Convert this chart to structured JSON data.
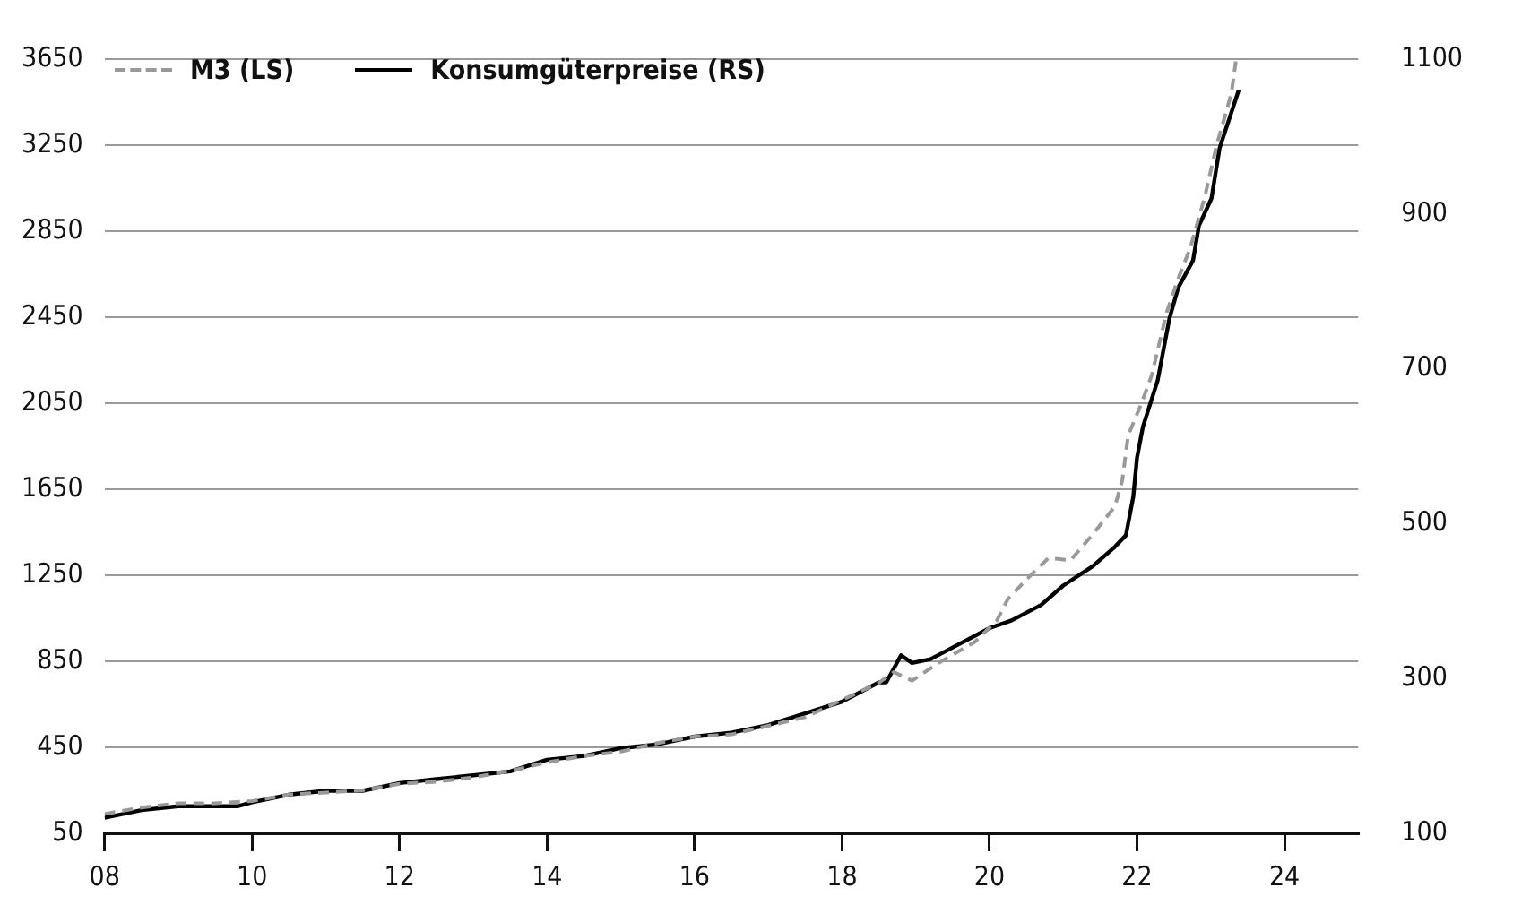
{
  "chart_data": {
    "type": "line",
    "legend": "top left",
    "grid": "y",
    "line_style": "solid",
    "marker": "none",
    "xlim": [
      2008,
      2025
    ],
    "xticks": [
      {
        "value": 2008,
        "label": "08"
      },
      {
        "value": 2010,
        "label": "10"
      },
      {
        "value": 2012,
        "label": "12"
      },
      {
        "value": 2014,
        "label": "14"
      },
      {
        "value": 2016,
        "label": "16"
      },
      {
        "value": 2018,
        "label": "18"
      },
      {
        "value": 2020,
        "label": "20"
      },
      {
        "value": 2022,
        "label": "22"
      },
      {
        "value": 2024,
        "label": "24"
      }
    ],
    "ylim": [
      50,
      3650
    ],
    "yticks": [
      50,
      450,
      850,
      1250,
      1650,
      2050,
      2450,
      2850,
      3250,
      3650
    ],
    "y2lim": [
      100,
      1100
    ],
    "y2ticks": [
      100,
      300,
      500,
      700,
      900,
      1100
    ],
    "series": [
      {
        "name": "M3 (LS)",
        "color": "#999999",
        "line_style": "dashed",
        "x": [
          2008,
          2008.5,
          2009,
          2009.5,
          2010,
          2010.5,
          2011,
          2011.5,
          2012,
          2012.5,
          2013,
          2013.5,
          2014,
          2014.5,
          2015,
          2015.5,
          2016,
          2016.5,
          2017,
          2017.5,
          2018,
          2018.5,
          2018.7,
          2018.95,
          2019.3,
          2019.8,
          2020.1,
          2020.25,
          2020.5,
          2020.8,
          2021.1,
          2021.4,
          2021.7,
          2021.8,
          2021.88,
          2022.05,
          2022.2,
          2022.4,
          2022.56,
          2022.72,
          2022.92,
          2023.08,
          2023.28,
          2023.34
        ],
        "values": [
          140,
          170,
          190,
          190,
          200,
          230,
          240,
          250,
          280,
          290,
          310,
          340,
          380,
          410,
          430,
          470,
          500,
          510,
          550,
          590,
          670,
          750,
          800,
          760,
          840,
          940,
          1040,
          1140,
          1230,
          1330,
          1320,
          1440,
          1570,
          1690,
          1900,
          2040,
          2180,
          2470,
          2630,
          2770,
          3010,
          3250,
          3490,
          3640
        ]
      },
      {
        "name": "Konsumgüterpreise (RS)",
        "color": "#000000",
        "axis": "y2",
        "x": [
          2008,
          2008.5,
          2009,
          2009.5,
          2009.8,
          2010,
          2010.5,
          2011,
          2011.5,
          2012,
          2012.5,
          2013,
          2013.5,
          2014,
          2014.5,
          2015,
          2015.5,
          2016,
          2016.5,
          2017,
          2017.5,
          2018,
          2018.5,
          2018.6,
          2018.8,
          2018.95,
          2019.2,
          2019.5,
          2020,
          2020.3,
          2020.7,
          2021,
          2021.4,
          2021.7,
          2021.85,
          2021.95,
          2022,
          2022.08,
          2022.28,
          2022.44,
          2022.56,
          2022.76,
          2022.84,
          2023.01,
          2023.12,
          2023.38
        ],
        "values": [
          120,
          130,
          135,
          135,
          135,
          140,
          150,
          155,
          155,
          165,
          170,
          175,
          180,
          195,
          200,
          210,
          215,
          225,
          230,
          240,
          255,
          270,
          295,
          295,
          330,
          320,
          325,
          340,
          365,
          375,
          395,
          420,
          445,
          470,
          485,
          535,
          585,
          625,
          685,
          765,
          805,
          840,
          885,
          920,
          985,
          1060
        ]
      }
    ]
  }
}
